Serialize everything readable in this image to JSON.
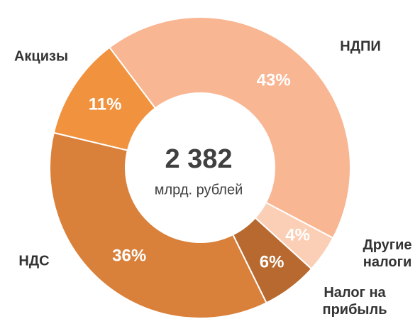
{
  "chart_data": {
    "type": "donut",
    "center_value": "2 382",
    "center_label": "млрд. рублей",
    "categories": [
      "НДПИ",
      "Другие\nналоги",
      "Налог на\nприбыль",
      "НДС",
      "Акцизы"
    ],
    "values": [
      43,
      4,
      6,
      36,
      11
    ],
    "value_labels": [
      "43%",
      "4%",
      "6%",
      "36%",
      "11%"
    ],
    "colors": [
      "#f8b693",
      "#fbcfb6",
      "#b7692f",
      "#d9803a",
      "#f0923e"
    ]
  }
}
